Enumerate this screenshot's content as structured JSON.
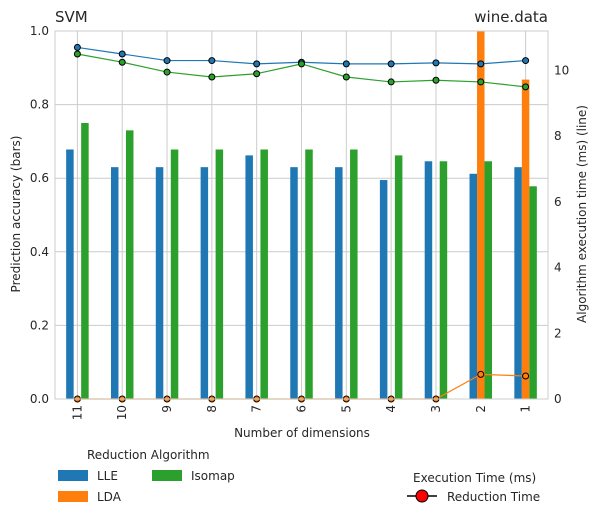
{
  "chart_data": {
    "type": "bar",
    "title_left": "SVM",
    "title_right": "wine.data",
    "xlabel": "Number of dimensions",
    "ylabel": "Prediction accuracy (bars)",
    "y2label": "Algorithm execution time (ms) (line)",
    "categories": [
      "11",
      "10",
      "9",
      "8",
      "7",
      "6",
      "5",
      "4",
      "3",
      "2",
      "1"
    ],
    "ylim": [
      0,
      1.0
    ],
    "y2lim": [
      0,
      11.2
    ],
    "yticks": [
      "0.0",
      "0.2",
      "0.4",
      "0.6",
      "0.8",
      "1.0"
    ],
    "y2ticks": [
      "0",
      "2",
      "4",
      "6",
      "8",
      "10"
    ],
    "grid": true,
    "bar_series": [
      {
        "name": "LLE",
        "color": "#1f77b4",
        "values": [
          0.678,
          0.63,
          0.63,
          0.63,
          0.662,
          0.63,
          0.63,
          0.595,
          0.646,
          0.612,
          0.63
        ]
      },
      {
        "name": "LDA",
        "color": "#ff7f0e",
        "values": [
          0,
          0,
          0,
          0,
          0,
          0,
          0,
          0,
          0,
          1.0,
          0.868
        ]
      },
      {
        "name": "Isomap",
        "color": "#2ca02c",
        "values": [
          0.75,
          0.73,
          0.678,
          0.678,
          0.678,
          0.678,
          0.678,
          0.662,
          0.646,
          0.646,
          0.578
        ]
      }
    ],
    "line_series": [
      {
        "name": "LLE",
        "color": "#1f77b4",
        "values": [
          10.7,
          10.5,
          10.3,
          10.3,
          10.2,
          10.25,
          10.2,
          10.2,
          10.23,
          10.2,
          10.3
        ]
      },
      {
        "name": "LDA",
        "color": "#ff7f0e",
        "values": [
          0,
          0,
          0,
          0,
          0,
          0,
          0,
          0,
          0,
          0.75,
          0.7
        ]
      },
      {
        "name": "Isomap",
        "color": "#2ca02c",
        "values": [
          10.5,
          10.25,
          9.95,
          9.8,
          9.9,
          10.2,
          9.8,
          9.65,
          9.7,
          9.65,
          9.5
        ]
      }
    ],
    "legend": {
      "bars_title": "Reduction Algorithm",
      "bars_entries": [
        "LLE",
        "LDA",
        "Isomap"
      ],
      "line_title": "Execution Time (ms)",
      "line_entry": "Reduction Time",
      "line_marker_color": "#ff0000",
      "placement": "bottom"
    }
  }
}
